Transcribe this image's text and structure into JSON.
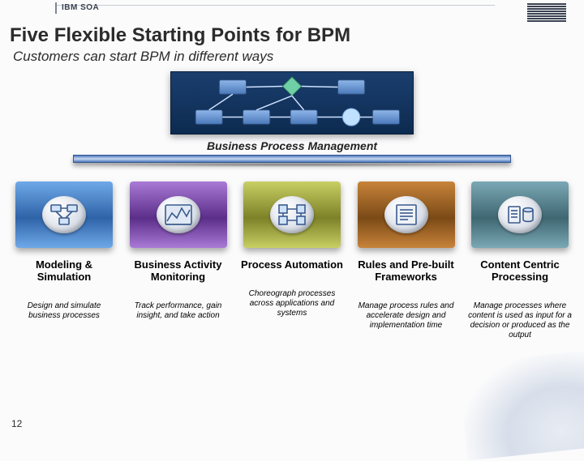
{
  "header": {
    "tag": "IBM SOA"
  },
  "title": "Five Flexible Starting Points for BPM",
  "subtitle": "Customers can start BPM in different ways",
  "bpm": {
    "label": "Business Process Management",
    "bar_color": "#4c78be",
    "panel_bg_top": "#1a3e6e",
    "panel_bg_bottom": "#0d2b50"
  },
  "pillars": [
    {
      "title": "Modeling & Simulation",
      "desc": "Design and simulate business processes",
      "color_top": "#6fa9e8",
      "color_bottom": "#2e63a8",
      "icon": "modeling"
    },
    {
      "title": "Business Activity Monitoring",
      "desc": "Track performance, gain insight, and take action",
      "color_top": "#a97ad6",
      "color_bottom": "#5b2e8a",
      "icon": "monitoring"
    },
    {
      "title": "Process Automation",
      "desc": "Choreograph processes across applications and systems",
      "color_top": "#c8cf63",
      "color_bottom": "#7d8128",
      "icon": "automation"
    },
    {
      "title": "Rules and Pre-built Frameworks",
      "desc": "Manage process rules and accelerate design and implementation time",
      "color_top": "#c8833a",
      "color_bottom": "#7a4a16",
      "icon": "rules"
    },
    {
      "title": "Content Centric Processing",
      "desc": "Manage processes where content is used as input for a decision or produced as the output",
      "color_top": "#7aa8b4",
      "color_bottom": "#3f6772",
      "icon": "content"
    }
  ],
  "page_number": "12",
  "colors": {
    "text": "#2b2b2b",
    "icon_stroke": "#3a5a8c"
  }
}
